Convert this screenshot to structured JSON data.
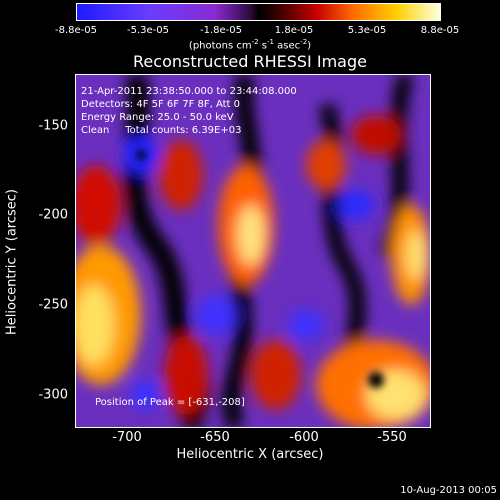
{
  "colorbar": {
    "ticks": [
      "-8.8e-05",
      "-5.3e-05",
      "-1.8e-05",
      "1.8e-05",
      "5.3e-05",
      "8.8e-05"
    ],
    "units_pre": "(photons cm",
    "units_exp1": "-2",
    "units_mid": " s",
    "units_exp2": "-1",
    "units_post": " asec",
    "units_exp3": "-2",
    "units_close": ")"
  },
  "title": "Reconstructed RHESSI Image",
  "info": {
    "time": "21-Apr-2011 23:38:50.000 to 23:44:08.000",
    "detectors": "Detectors: 4F 5F 6F 7F 8F, Att 0",
    "energy": "Energy Range: 25.0 - 50.0 keV",
    "clean": "Clean     Total counts: 6.39E+03"
  },
  "peak_text": "Position of Peak = [-631,-208]",
  "axes": {
    "xlabel": "Heliocentric X (arcsec)",
    "ylabel": "Heliocentric Y (arcsec)",
    "xticks": [
      "-700",
      "-650",
      "-600",
      "-550"
    ],
    "yticks": [
      "-150",
      "-200",
      "-250",
      "-300"
    ]
  },
  "date_stamp": "10-Aug-2013 00:05"
}
